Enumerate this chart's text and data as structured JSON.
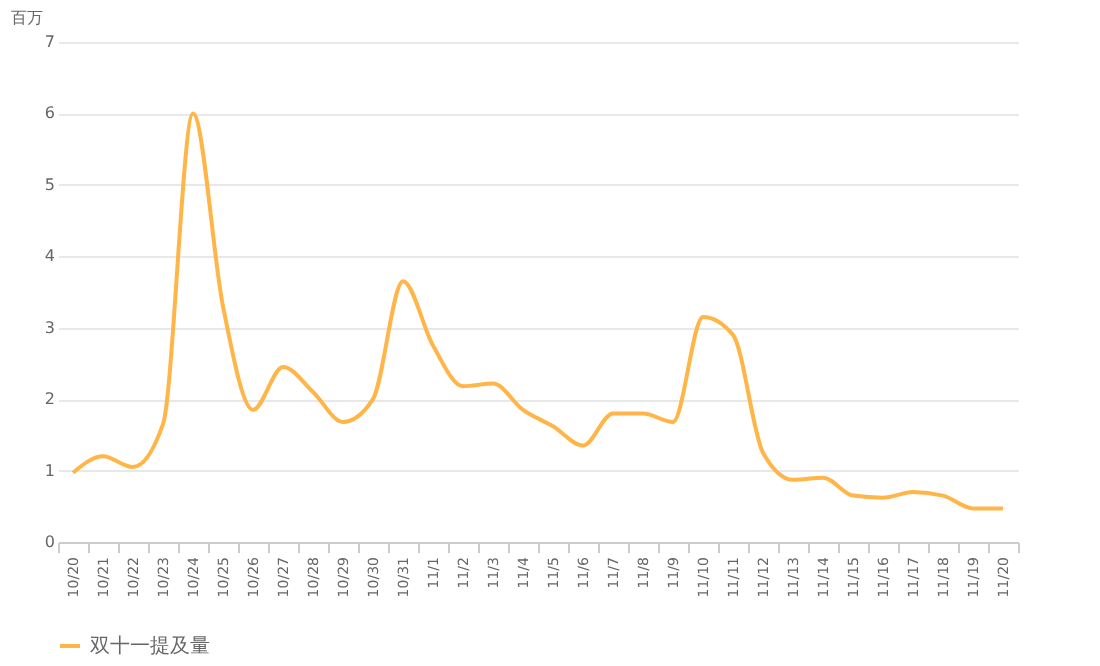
{
  "chart_data": {
    "type": "line",
    "ylabel": "百万",
    "categories": [
      "10/20",
      "10/21",
      "10/22",
      "10/23",
      "10/24",
      "10/25",
      "10/26",
      "10/27",
      "10/28",
      "10/29",
      "10/30",
      "10/31",
      "11/1",
      "11/2",
      "11/3",
      "11/4",
      "11/5",
      "11/6",
      "11/7",
      "11/8",
      "11/9",
      "11/10",
      "11/11",
      "11/12",
      "11/13",
      "11/14",
      "11/15",
      "11/16",
      "11/17",
      "11/18",
      "11/19",
      "11/20"
    ],
    "series": [
      {
        "name": "双十一提及量",
        "color": "#ffb547",
        "values": [
          0.97,
          1.2,
          1.05,
          1.65,
          6.0,
          3.3,
          1.85,
          2.45,
          2.1,
          1.68,
          2.0,
          3.65,
          2.75,
          2.18,
          2.22,
          1.85,
          1.62,
          1.35,
          1.8,
          1.8,
          1.68,
          3.15,
          2.9,
          1.25,
          0.87,
          0.9,
          0.65,
          0.62,
          0.7,
          0.65,
          0.47,
          0.47
        ]
      }
    ],
    "ylim": [
      0,
      7
    ],
    "yticks": [
      0,
      1,
      2,
      3,
      4,
      5,
      6,
      7
    ],
    "grid": "y",
    "legend": "bottom",
    "marker": "none",
    "line_style": "solid"
  }
}
